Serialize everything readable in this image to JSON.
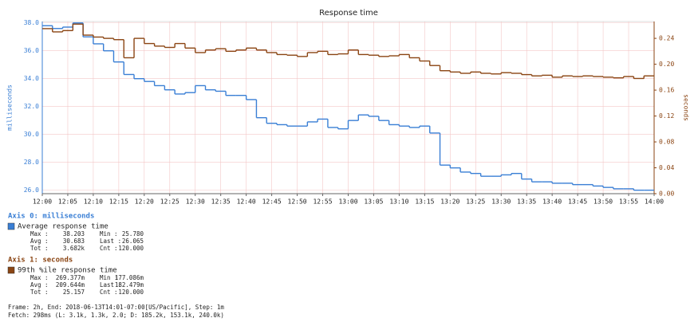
{
  "chart_data": {
    "type": "step",
    "title": "Response time",
    "ylabel": "milliseconds",
    "y2label": "seconds",
    "x": [
      "12:00",
      "12:02",
      "12:04",
      "12:06",
      "12:08",
      "12:10",
      "12:12",
      "12:14",
      "12:16",
      "12:18",
      "12:20",
      "12:22",
      "12:24",
      "12:26",
      "12:28",
      "12:30",
      "12:32",
      "12:34",
      "12:36",
      "12:38",
      "12:40",
      "12:42",
      "12:44",
      "12:46",
      "12:48",
      "12:50",
      "12:52",
      "12:54",
      "12:56",
      "12:58",
      "13:00",
      "13:02",
      "13:04",
      "13:06",
      "13:08",
      "13:10",
      "13:12",
      "13:14",
      "13:16",
      "13:18",
      "13:20",
      "13:22",
      "13:24",
      "13:26",
      "13:28",
      "13:30",
      "13:32",
      "13:34",
      "13:36",
      "13:38",
      "13:40",
      "13:42",
      "13:44",
      "13:46",
      "13:48",
      "13:50",
      "13:52",
      "13:54",
      "13:56",
      "13:58"
    ],
    "xlim": [
      "12:00",
      "14:00"
    ],
    "xticks": [
      "12:00",
      "12:05",
      "12:10",
      "12:15",
      "12:20",
      "12:25",
      "12:30",
      "12:35",
      "12:40",
      "12:45",
      "12:50",
      "12:55",
      "13:00",
      "13:05",
      "13:10",
      "13:15",
      "13:20",
      "13:25",
      "13:30",
      "13:35",
      "13:40",
      "13:45",
      "13:50",
      "13:55",
      "14:00"
    ],
    "ylim": [
      25.75,
      38.1
    ],
    "yticks": [
      {
        "value": 26,
        "label": "26.0"
      },
      {
        "value": 28,
        "label": "28.0"
      },
      {
        "value": 30,
        "label": "30.0"
      },
      {
        "value": 32,
        "label": "32.0"
      },
      {
        "value": 34,
        "label": "34.0"
      },
      {
        "value": 36,
        "label": "36.0"
      },
      {
        "value": 38,
        "label": "38.0"
      }
    ],
    "y2lim": [
      0,
      0.266
    ],
    "y2ticks": [
      {
        "value": 0,
        "label": "0.00"
      },
      {
        "value": 0.04,
        "label": "0.04"
      },
      {
        "value": 0.08,
        "label": "0.08"
      },
      {
        "value": 0.12,
        "label": "0.12"
      },
      {
        "value": 0.16,
        "label": "0.16"
      },
      {
        "value": 0.2,
        "label": "0.20"
      },
      {
        "value": 0.24,
        "label": "0.24"
      }
    ],
    "grid": true,
    "series": [
      {
        "name": "Average response time",
        "color": "#3a7fd5",
        "axis": "y",
        "values": [
          37.8,
          37.6,
          37.7,
          38.0,
          37.0,
          36.5,
          36.0,
          35.2,
          34.3,
          34.0,
          33.8,
          33.5,
          33.2,
          32.9,
          33.0,
          33.5,
          33.2,
          33.1,
          32.8,
          32.8,
          32.5,
          31.2,
          30.8,
          30.7,
          30.6,
          30.6,
          30.9,
          31.1,
          30.5,
          30.4,
          31.0,
          31.4,
          31.3,
          31.0,
          30.7,
          30.6,
          30.5,
          30.6,
          30.1,
          27.8,
          27.6,
          27.3,
          27.2,
          27.0,
          27.0,
          27.1,
          27.2,
          26.8,
          26.6,
          26.6,
          26.5,
          26.5,
          26.4,
          26.4,
          26.3,
          26.2,
          26.1,
          26.1,
          26.0,
          26.0
        ]
      },
      {
        "name": "99th %ile response time",
        "color": "#8b4513",
        "axis": "y2",
        "values": [
          0.255,
          0.25,
          0.252,
          0.262,
          0.245,
          0.242,
          0.24,
          0.238,
          0.21,
          0.24,
          0.232,
          0.228,
          0.226,
          0.232,
          0.225,
          0.218,
          0.222,
          0.224,
          0.22,
          0.222,
          0.225,
          0.222,
          0.218,
          0.215,
          0.214,
          0.212,
          0.218,
          0.22,
          0.215,
          0.216,
          0.222,
          0.215,
          0.214,
          0.212,
          0.213,
          0.215,
          0.21,
          0.205,
          0.198,
          0.19,
          0.188,
          0.186,
          0.188,
          0.186,
          0.185,
          0.187,
          0.186,
          0.184,
          0.182,
          0.183,
          0.18,
          0.182,
          0.181,
          0.182,
          0.181,
          0.18,
          0.179,
          0.181,
          0.178,
          0.182
        ]
      }
    ]
  },
  "legend": [
    {
      "heading": "Axis 0: milliseconds",
      "stats": [
        [
          "Max :",
          "38.203",
          "Min  :",
          "25.780"
        ],
        [
          "Avg :",
          "30.683",
          "Last :",
          "26.065"
        ],
        [
          "Tot :",
          "3.682k",
          "Cnt  :",
          "120.000"
        ]
      ]
    },
    {
      "heading": "Axis 1: seconds",
      "stats": [
        [
          "Max :",
          "269.377m",
          "Min  :",
          "177.086m"
        ],
        [
          "Avg :",
          "209.644m",
          "Last :",
          "182.479m"
        ],
        [
          "Tot :",
          "25.157",
          "Cnt  :",
          "120.000"
        ]
      ]
    }
  ],
  "footer": [
    "Frame: 2h, End: 2018-06-13T14:01-07:00[US/Pacific], Step: 1m",
    "Fetch: 298ms (L: 3.1k, 1.3k, 2.0; D: 185.2k, 153.1k, 240.0k)"
  ]
}
